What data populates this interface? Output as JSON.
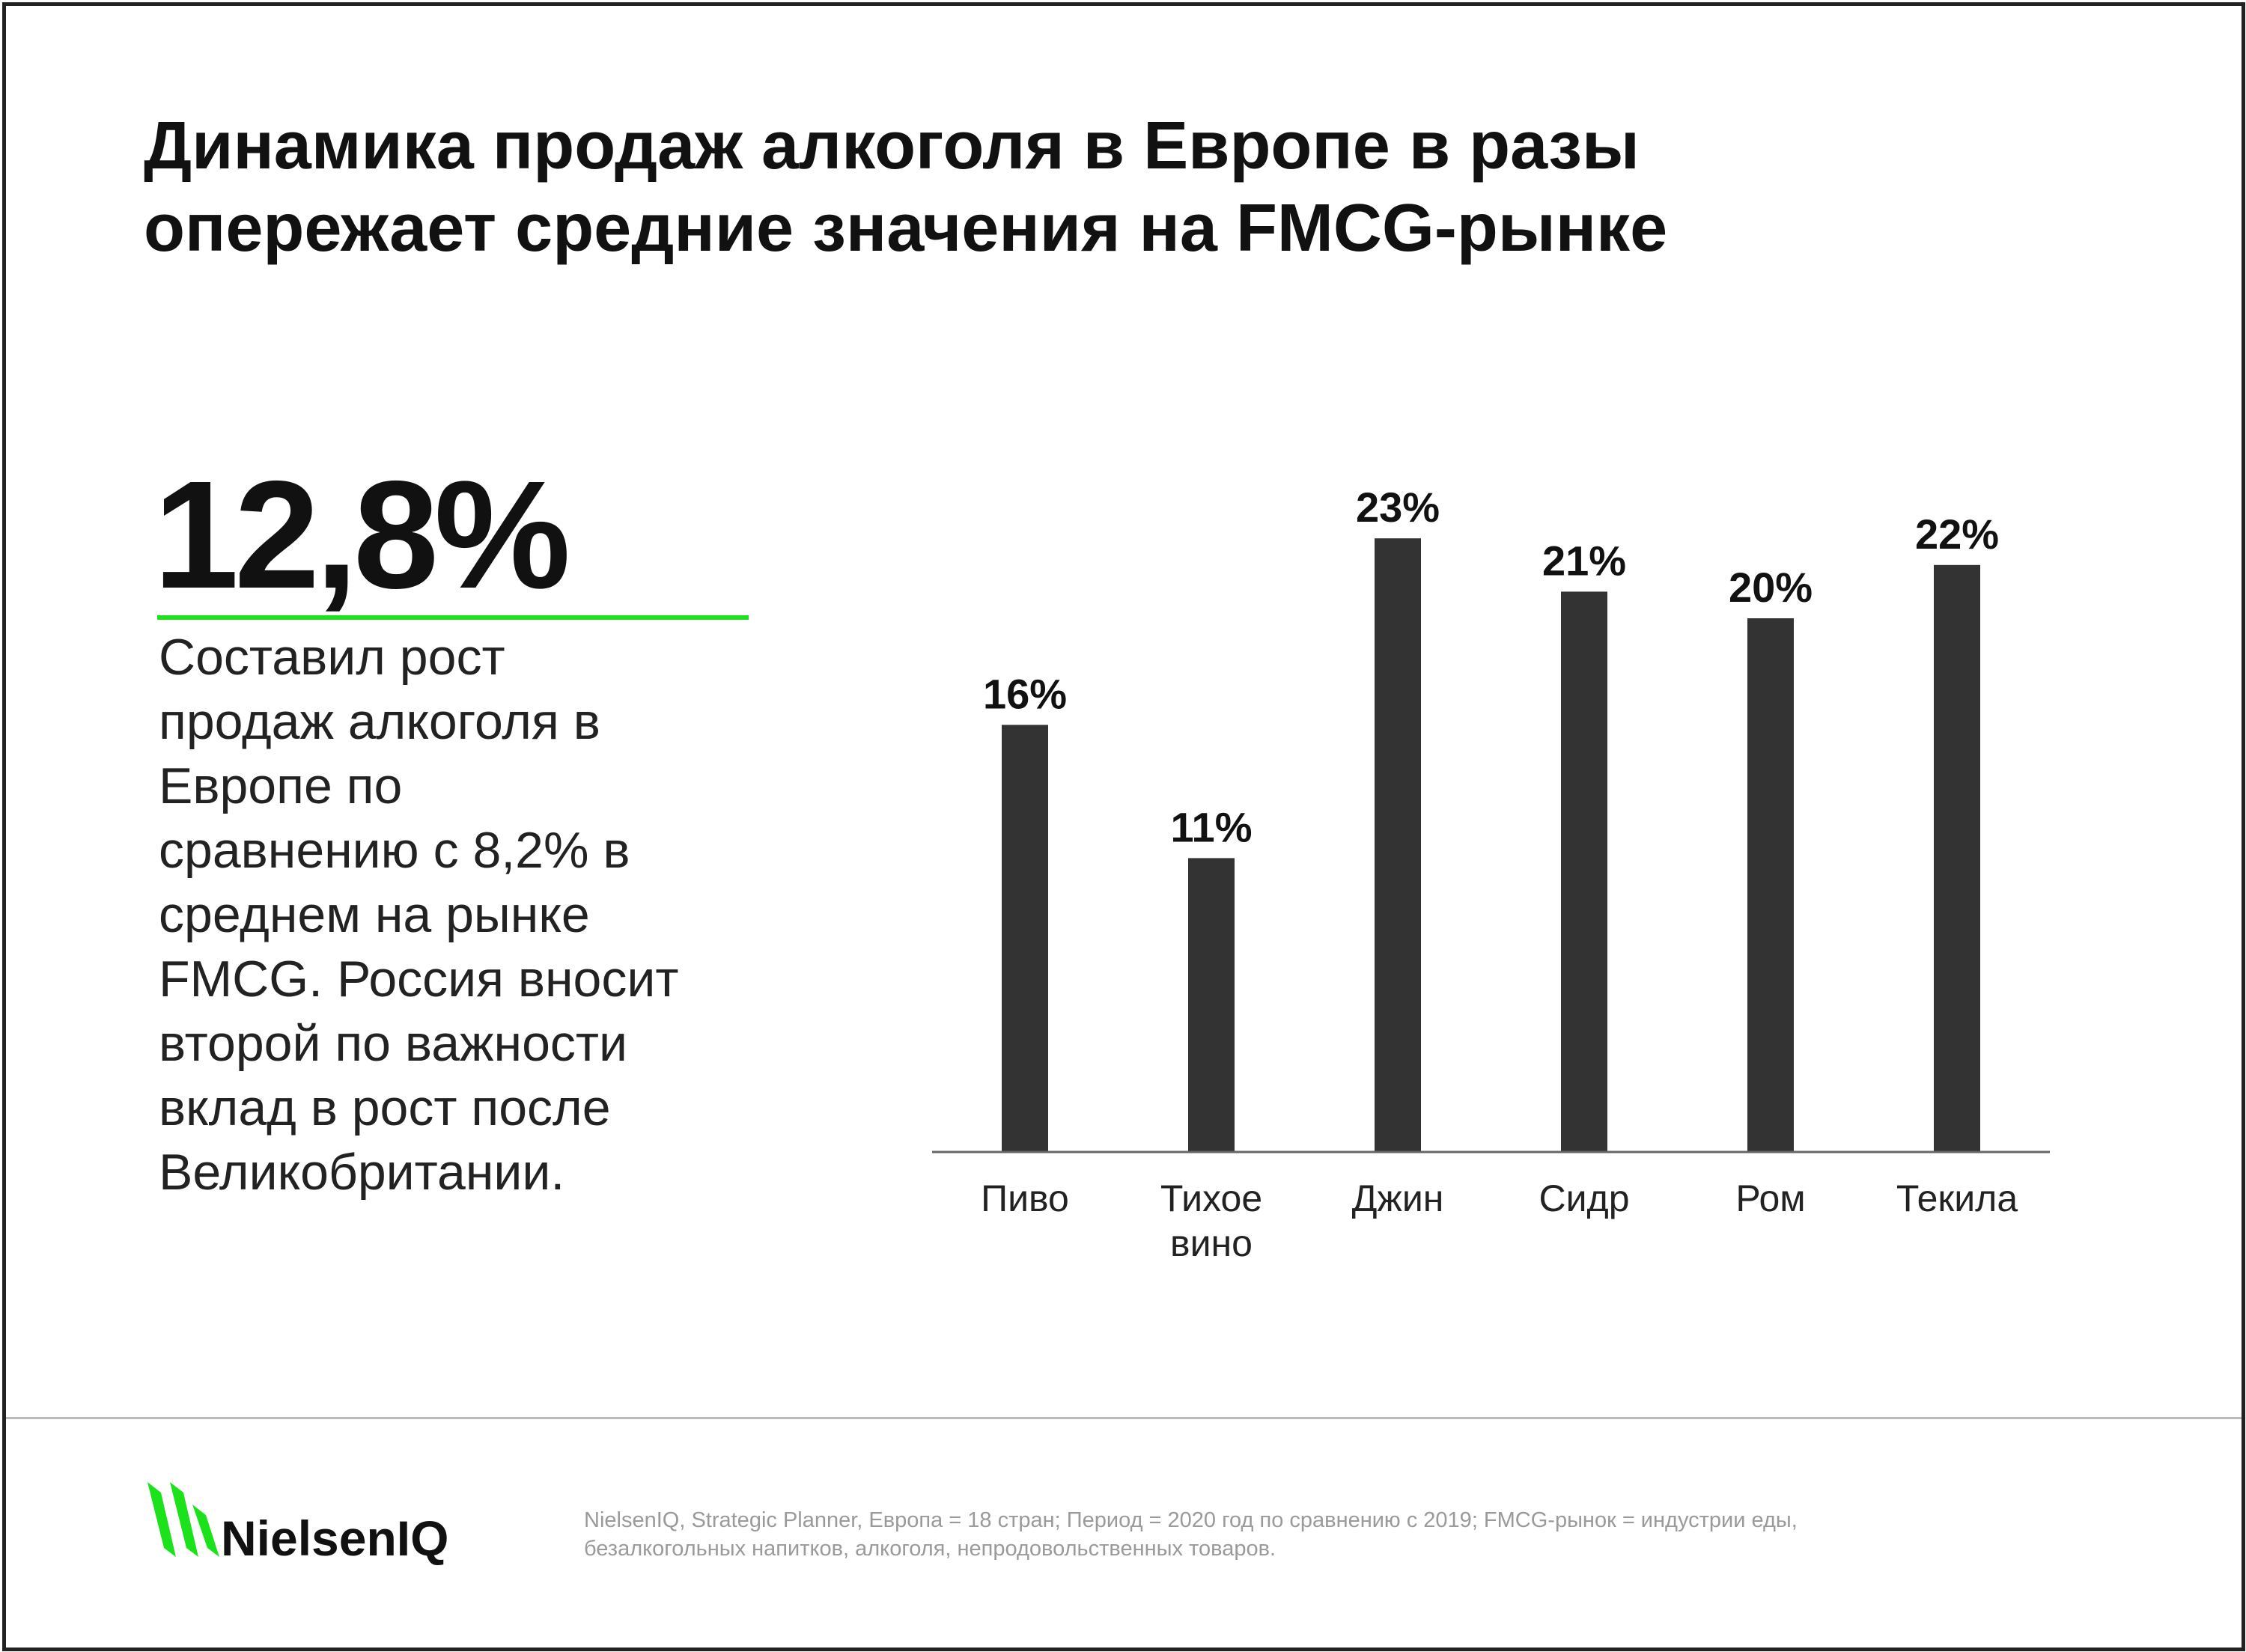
{
  "title_lines": [
    "Динамика продаж алкоголя в Европе в разы",
    "опережает средние значения на FMCG-рынке"
  ],
  "highlight": {
    "value": "12,8%",
    "accent_color": "#1ce21c",
    "lines": [
      "Составил рост",
      "продаж алкоголя в",
      "Европе по",
      "сравнению с 8,2% в",
      "среднем на рынке",
      "FMCG. Россия вносит",
      "второй по важности",
      "вклад в рост после",
      "Великобритании."
    ]
  },
  "chart_data": {
    "type": "bar",
    "title": "",
    "xlabel": "",
    "ylabel": "",
    "categories": [
      [
        "Пиво"
      ],
      [
        "Тихое",
        "вино"
      ],
      [
        "Джин"
      ],
      [
        "Сидр"
      ],
      [
        "Ром"
      ],
      [
        "Текила"
      ]
    ],
    "values": [
      16,
      11,
      23,
      21,
      20,
      22
    ],
    "data_labels": [
      "16%",
      "11%",
      "23%",
      "21%",
      "20%",
      "22%"
    ],
    "ylim": [
      0,
      25
    ],
    "grid": false,
    "bar_color": "#333333"
  },
  "footer": {
    "logo_text": "NielsenIQ",
    "logo_color": "#1ce21c",
    "source_lines": [
      "NielsenIQ, Strategic Planner, Европа = 18 стран; Период = 2020 год по сравнению с 2019; FMCG-рынок = индустрии еды,",
      "безалкогольных напитков, алкоголя, непродовольственных товаров."
    ]
  }
}
